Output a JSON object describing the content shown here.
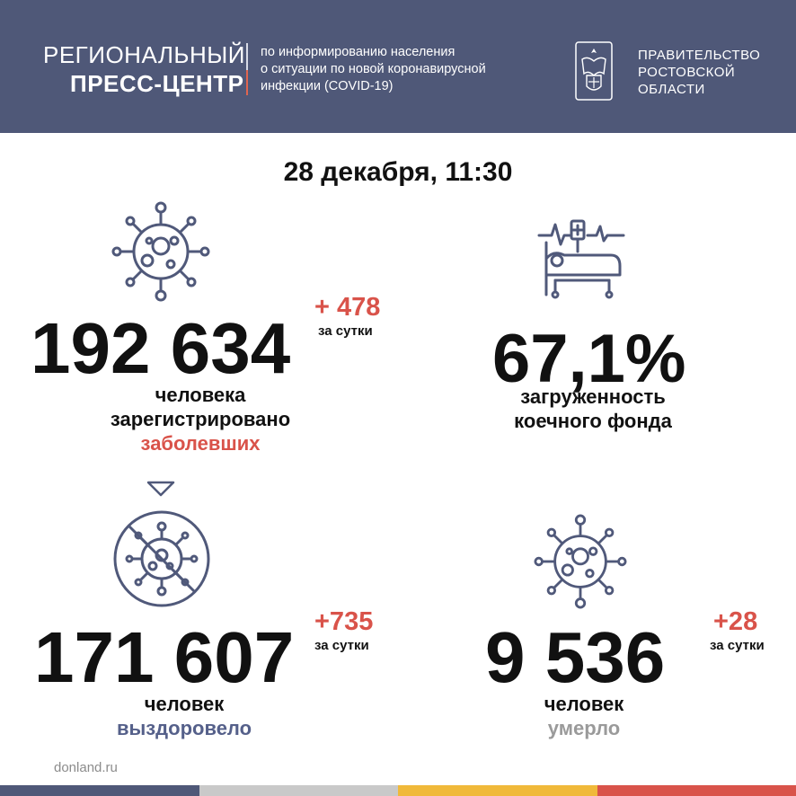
{
  "header": {
    "title_line1": "РЕГИОНАЛЬНЫЙ",
    "title_line2": "ПРЕСС-ЦЕНТР",
    "desc_lines": [
      "по информированию населения",
      "о ситуации по новой коронавирусной",
      "инфекции (COVID-19)"
    ],
    "gov_lines": [
      "ПРАВИТЕЛЬСТВО",
      "РОСТОВСКОЙ",
      "ОБЛАСТИ"
    ],
    "emblem_icon": "coat-of-arms-icon"
  },
  "date": "28 декабря, 11:30",
  "infected": {
    "icon": "virus-icon",
    "value": "192 634",
    "delta": "+ 478",
    "delta_label": "за сутки",
    "caption_line1": "человека",
    "caption_line2": "зарегистрировано",
    "caption_line3": "заболевших"
  },
  "beds": {
    "icon": "hospital-bed-icon",
    "value": "67,1%",
    "caption_line1": "загруженность",
    "caption_line2": "коечного фонда"
  },
  "recovered": {
    "icon": "crossed-virus-icon",
    "value": "171 607",
    "delta": "+735",
    "delta_label": "за сутки",
    "caption_line1": "человек",
    "caption_line2": "выздоровело"
  },
  "deaths": {
    "icon": "virus-icon",
    "value": "9 536",
    "delta": "+28",
    "delta_label": "за сутки",
    "caption_line1": "человек",
    "caption_line2": "умерло"
  },
  "source": "donland.ru",
  "colors": {
    "header_bg": "#4f5878",
    "accent_red": "#d9534a",
    "accent_blue": "#55608a",
    "footer": [
      "#4f5878",
      "#c9c9c9",
      "#f0b93a",
      "#d9534a"
    ]
  }
}
